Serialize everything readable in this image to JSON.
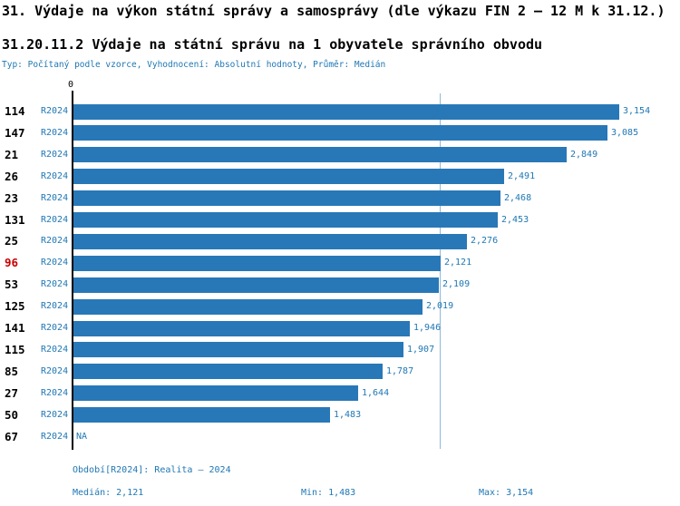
{
  "header": {
    "title_line1": "31. Výdaje na výkon státní správy a samosprávy (dle výkazu FIN 2 – 12 M k 31.12.)",
    "title_line2": "31.20.11.2 Výdaje na státní správu na 1 obyvatele správního obvodu",
    "meta": "Typ: Počítaný podle vzorce, Vyhodnocení: Absolutní hodnoty, Průměr: Medián"
  },
  "axis": {
    "zero_label": "0"
  },
  "chart_data": {
    "type": "bar",
    "orientation": "horizontal",
    "series_label": "R2024",
    "categories": [
      "114",
      "147",
      "21",
      "26",
      "23",
      "131",
      "25",
      "96",
      "53",
      "125",
      "141",
      "115",
      "85",
      "27",
      "50",
      "67"
    ],
    "values": [
      3154,
      3085,
      2849,
      2491,
      2468,
      2453,
      2276,
      2121,
      2109,
      2019,
      1946,
      1907,
      1787,
      1644,
      1483,
      null
    ],
    "value_labels": [
      "3,154",
      "3,085",
      "2,849",
      "2,491",
      "2,468",
      "2,453",
      "2,276",
      "2,121",
      "2,109",
      "2,019",
      "1,946",
      "1,907",
      "1,787",
      "1,644",
      "1,483",
      "NA"
    ],
    "highlighted_category": "96",
    "median": 2121,
    "min": 1483,
    "max": 3154,
    "xlim": [
      0,
      3300
    ],
    "colors": {
      "bar": "#2878b8",
      "value_text": "#1f77b4",
      "category_text": "#000000",
      "highlight_text": "#cc0000",
      "series_text": "#1f77b4",
      "median_line": "#8fb8d8",
      "axis_line": "#000000"
    }
  },
  "footer": {
    "period": "Období[R2024]: Realita – 2024",
    "median": "Medián: 2,121",
    "min": "Min: 1,483",
    "max": "Max: 3,154"
  }
}
